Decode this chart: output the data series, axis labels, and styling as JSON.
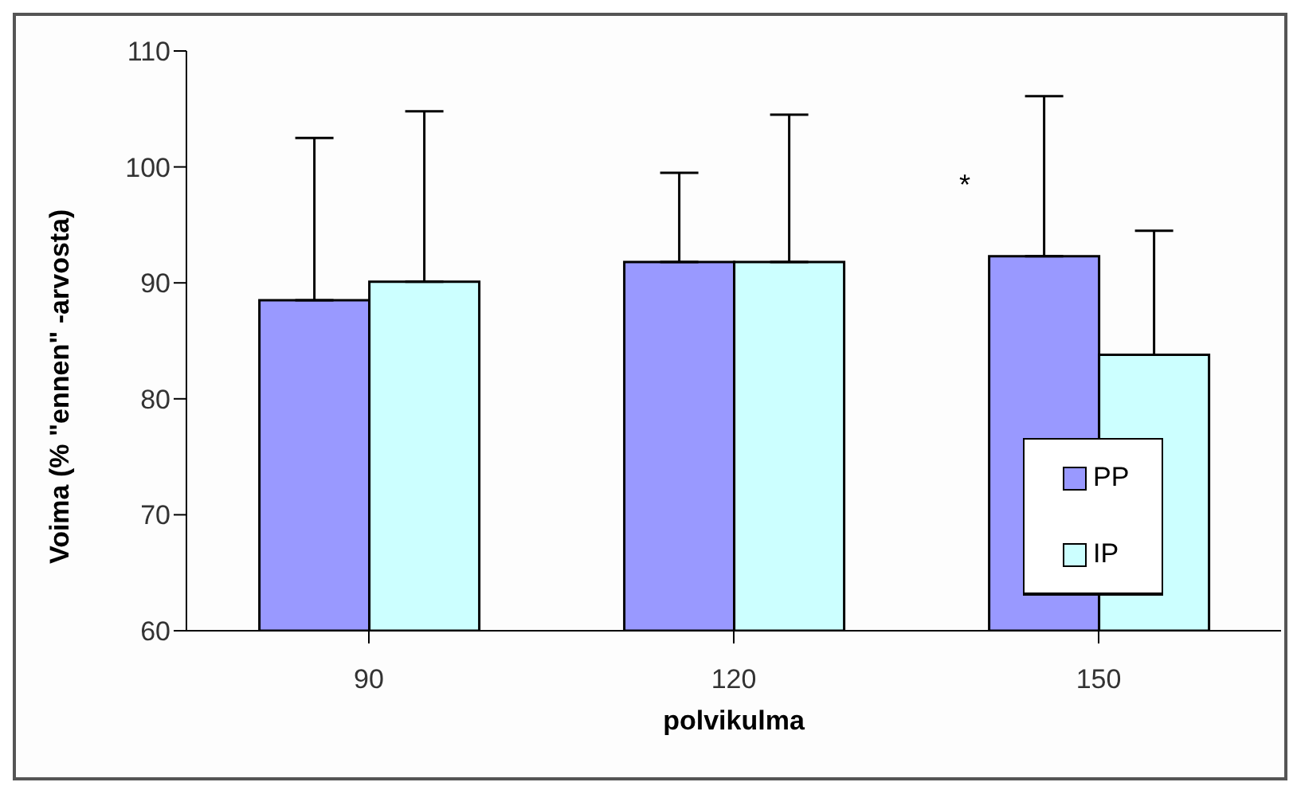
{
  "chart_data": {
    "type": "bar",
    "xlabel": "polvikulma",
    "ylabel": "Voima (% \"ennen\" -arvosta)",
    "categories": [
      "90",
      "120",
      "150"
    ],
    "series": [
      {
        "name": "PP",
        "color": "#9999ff",
        "values": [
          88.5,
          91.8,
          92.3
        ],
        "errors": [
          [
            88.5,
            102.5
          ],
          [
            91.8,
            99.5
          ],
          [
            92.3,
            106.1
          ]
        ]
      },
      {
        "name": "IP",
        "color": "#ccffff",
        "values": [
          90.1,
          91.8,
          83.8
        ],
        "errors": [
          [
            90.1,
            104.8
          ],
          [
            91.8,
            104.5
          ],
          [
            83.8,
            94.5
          ]
        ]
      }
    ],
    "ylim": [
      60,
      110
    ],
    "yticks": [
      60,
      70,
      80,
      90,
      100,
      110
    ],
    "legend": "bottom right",
    "grid": false,
    "annotations": [
      "*"
    ]
  }
}
